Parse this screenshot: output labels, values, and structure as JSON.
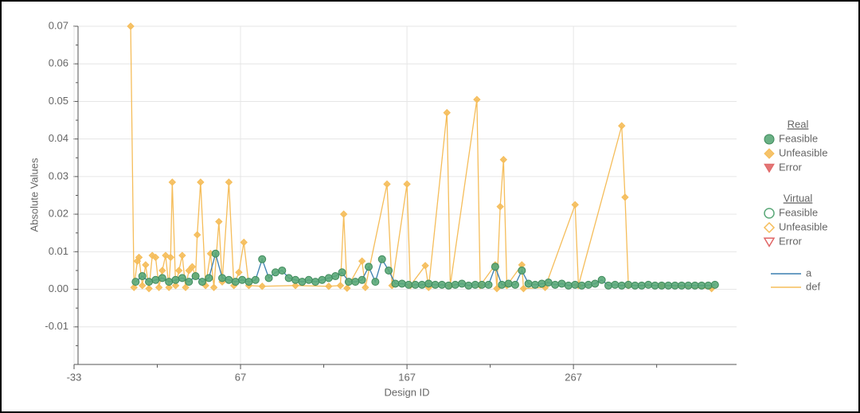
{
  "chart_data": {
    "type": "line",
    "xlabel": "Design ID",
    "ylabel": "Absolute Values",
    "xlim": [
      -33,
      365
    ],
    "xticks": [
      -33,
      67,
      167,
      267
    ],
    "xminor": [
      17,
      117,
      217,
      317
    ],
    "ylim": [
      -0.02,
      0.07
    ],
    "yticks": [
      -0.01,
      {
        "value": 0,
        "label": "0.00"
      },
      0.01,
      0.02,
      0.03,
      0.04,
      0.05,
      0.06,
      0.07
    ],
    "yminor": [
      -0.015,
      -0.005,
      0.005,
      0.015,
      0.025,
      0.035,
      0.045,
      0.055,
      0.065
    ],
    "grid": true,
    "series": [
      {
        "name": "a",
        "color": "#3a7fb0",
        "marker": "circle-filled",
        "marker_color": "#5aa878",
        "x": [
          4,
          8,
          12,
          16,
          20,
          24,
          28,
          32,
          36,
          40,
          44,
          48,
          52,
          56,
          60,
          64,
          68,
          72,
          76,
          80,
          84,
          88,
          92,
          96,
          100,
          104,
          108,
          112,
          116,
          120,
          124,
          128,
          132,
          136,
          140,
          144,
          148,
          152,
          156,
          160,
          164,
          168,
          172,
          176,
          180,
          184,
          188,
          192,
          196,
          200,
          204,
          208,
          212,
          216,
          220,
          224,
          228,
          232,
          236,
          240,
          244,
          248,
          252,
          256,
          260,
          264,
          268,
          272,
          276,
          280,
          284,
          288,
          292,
          296,
          300,
          304,
          308,
          312,
          316,
          320,
          324,
          328,
          332,
          336,
          340,
          344,
          348,
          352
        ],
        "values": [
          0.002,
          0.0035,
          0.002,
          0.0025,
          0.003,
          0.002,
          0.0025,
          0.003,
          0.002,
          0.0035,
          0.002,
          0.003,
          0.0095,
          0.003,
          0.0025,
          0.002,
          0.0025,
          0.002,
          0.0025,
          0.008,
          0.003,
          0.0045,
          0.005,
          0.003,
          0.0025,
          0.002,
          0.0025,
          0.002,
          0.0025,
          0.003,
          0.0035,
          0.0045,
          0.002,
          0.002,
          0.0025,
          0.006,
          0.002,
          0.008,
          0.005,
          0.0015,
          0.0015,
          0.0012,
          0.0012,
          0.0012,
          0.0015,
          0.0012,
          0.0012,
          0.001,
          0.0012,
          0.0015,
          0.001,
          0.0012,
          0.0012,
          0.0012,
          0.006,
          0.0012,
          0.0015,
          0.0012,
          0.005,
          0.0015,
          0.0012,
          0.0015,
          0.0018,
          0.0012,
          0.0015,
          0.001,
          0.0012,
          0.001,
          0.0012,
          0.0015,
          0.0025,
          0.001,
          0.0012,
          0.001,
          0.0012,
          0.001,
          0.001,
          0.0012,
          0.001,
          0.001,
          0.001,
          0.001,
          0.001,
          0.001,
          0.001,
          0.001,
          0.001,
          0.0012
        ]
      },
      {
        "name": "def",
        "color": "#f5bd5a",
        "marker": "diamond-filled",
        "marker_color": "#f5bd5a",
        "x": [
          1,
          3,
          5,
          6,
          8,
          10,
          12,
          14,
          16,
          18,
          20,
          22,
          24,
          25,
          26,
          28,
          30,
          32,
          34,
          36,
          38,
          40,
          41,
          43,
          46,
          49,
          51,
          54,
          56,
          60,
          63,
          66,
          69,
          72,
          80,
          100,
          120,
          127,
          129,
          131,
          140,
          142,
          155,
          158,
          167,
          169,
          178,
          180,
          191,
          193,
          209,
          211,
          220,
          221,
          223,
          225,
          227,
          236,
          237,
          250,
          268,
          270,
          296,
          298,
          300,
          320,
          350
        ],
        "values": [
          0.07,
          0.0005,
          0.0075,
          0.0085,
          0.001,
          0.0065,
          0.0002,
          0.009,
          0.0085,
          0.0005,
          0.005,
          0.009,
          0.0005,
          0.0085,
          0.0285,
          0.001,
          0.005,
          0.009,
          0.0005,
          0.005,
          0.006,
          0.0035,
          0.0145,
          0.0285,
          0.001,
          0.0095,
          0.0005,
          0.018,
          0.002,
          0.0285,
          0.001,
          0.0045,
          0.0125,
          0.001,
          0.0008,
          0.001,
          0.0008,
          0.001,
          0.02,
          0.0003,
          0.0075,
          0.0005,
          0.028,
          0.001,
          0.028,
          0.001,
          0.0063,
          0.0005,
          0.047,
          0.001,
          0.0505,
          0.001,
          0.0065,
          0.0002,
          0.022,
          0.0345,
          0.001,
          0.0065,
          0.0002,
          0.0005,
          0.0225,
          0.001,
          0.0435,
          0.0245,
          0.001,
          0.001,
          0.0002
        ]
      }
    ],
    "legend": [
      {
        "title": "Real",
        "items": [
          {
            "label": "Feasible",
            "symbol": "circle-filled",
            "color": "#5aa878"
          },
          {
            "label": "Unfeasible",
            "symbol": "diamond-filled",
            "color": "#f5bd5a"
          },
          {
            "label": "Error",
            "symbol": "triangle-filled",
            "color": "#e06666"
          }
        ]
      },
      {
        "title": "Virtual",
        "items": [
          {
            "label": "Feasible",
            "symbol": "circle-open",
            "color": "#5aa878"
          },
          {
            "label": "Unfeasible",
            "symbol": "diamond-open",
            "color": "#f5bd5a"
          },
          {
            "label": "Error",
            "symbol": "triangle-open",
            "color": "#e06666"
          }
        ]
      }
    ]
  }
}
